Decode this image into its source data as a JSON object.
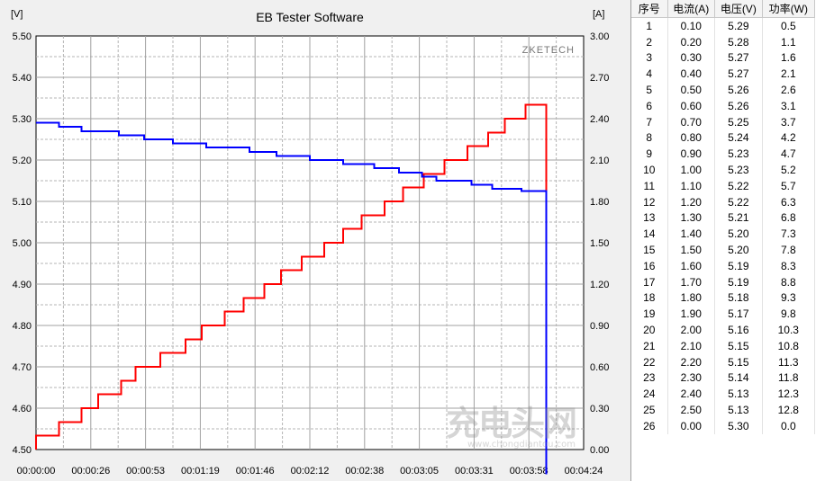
{
  "chart_data": {
    "type": "line",
    "title": "EB Tester Software",
    "watermark_brand": "ZKETECH",
    "left_unit": "[V]",
    "right_unit": "[A]",
    "left_axis": {
      "ylim": [
        4.5,
        5.5
      ],
      "ticks": [
        "5.50",
        "5.40",
        "5.30",
        "5.20",
        "5.10",
        "5.00",
        "4.90",
        "4.80",
        "4.70",
        "4.60",
        "4.50"
      ]
    },
    "right_axis": {
      "ylim": [
        0.0,
        3.0
      ],
      "ticks": [
        "3.00",
        "2.70",
        "2.40",
        "2.10",
        "1.80",
        "1.50",
        "1.20",
        "0.90",
        "0.60",
        "0.30",
        "0.00"
      ]
    },
    "x_ticks": [
      "00:00:00",
      "00:00:26",
      "00:00:53",
      "00:01:19",
      "00:01:46",
      "00:02:12",
      "00:02:38",
      "00:03:05",
      "00:03:31",
      "00:03:58",
      "00:04:24"
    ],
    "x_range_seconds": [
      0,
      264
    ],
    "series": [
      {
        "name": "Current",
        "axis": "right",
        "color": "#ff0000",
        "points": [
          [
            0,
            0.0
          ],
          [
            0,
            0.1
          ],
          [
            11,
            0.1
          ],
          [
            11,
            0.2
          ],
          [
            22,
            0.2
          ],
          [
            22,
            0.3
          ],
          [
            30,
            0.3
          ],
          [
            30,
            0.4
          ],
          [
            41,
            0.4
          ],
          [
            41,
            0.5
          ],
          [
            48,
            0.5
          ],
          [
            48,
            0.6
          ],
          [
            60,
            0.6
          ],
          [
            60,
            0.7
          ],
          [
            72,
            0.7
          ],
          [
            72,
            0.8
          ],
          [
            80,
            0.8
          ],
          [
            80,
            0.9
          ],
          [
            91,
            0.9
          ],
          [
            91,
            1.0
          ],
          [
            100,
            1.0
          ],
          [
            100,
            1.1
          ],
          [
            110,
            1.1
          ],
          [
            110,
            1.2
          ],
          [
            118,
            1.2
          ],
          [
            118,
            1.3
          ],
          [
            128,
            1.3
          ],
          [
            128,
            1.4
          ],
          [
            139,
            1.4
          ],
          [
            139,
            1.5
          ],
          [
            148,
            1.5
          ],
          [
            148,
            1.6
          ],
          [
            157,
            1.6
          ],
          [
            157,
            1.7
          ],
          [
            168,
            1.7
          ],
          [
            168,
            1.8
          ],
          [
            177,
            1.8
          ],
          [
            177,
            1.9
          ],
          [
            187,
            1.9
          ],
          [
            187,
            2.0
          ],
          [
            197,
            2.0
          ],
          [
            197,
            2.1
          ],
          [
            208,
            2.1
          ],
          [
            208,
            2.2
          ],
          [
            218,
            2.2
          ],
          [
            218,
            2.3
          ],
          [
            226,
            2.3
          ],
          [
            226,
            2.4
          ],
          [
            236,
            2.4
          ],
          [
            236,
            2.5
          ],
          [
            246,
            2.5
          ],
          [
            246,
            1.84
          ]
        ]
      },
      {
        "name": "Voltage",
        "axis": "left",
        "color": "#0000ff",
        "points": [
          [
            0,
            5.29
          ],
          [
            11,
            5.29
          ],
          [
            11,
            5.28
          ],
          [
            22,
            5.28
          ],
          [
            22,
            5.27
          ],
          [
            40,
            5.27
          ],
          [
            40,
            5.26
          ],
          [
            52,
            5.26
          ],
          [
            52,
            5.25
          ],
          [
            66,
            5.25
          ],
          [
            66,
            5.24
          ],
          [
            82,
            5.24
          ],
          [
            82,
            5.23
          ],
          [
            103,
            5.23
          ],
          [
            103,
            5.22
          ],
          [
            116,
            5.22
          ],
          [
            116,
            5.21
          ],
          [
            132,
            5.21
          ],
          [
            132,
            5.2
          ],
          [
            148,
            5.2
          ],
          [
            148,
            5.19
          ],
          [
            163,
            5.19
          ],
          [
            163,
            5.18
          ],
          [
            175,
            5.18
          ],
          [
            175,
            5.17
          ],
          [
            186,
            5.17
          ],
          [
            186,
            5.16
          ],
          [
            193,
            5.16
          ],
          [
            193,
            5.15
          ],
          [
            210,
            5.15
          ],
          [
            210,
            5.14
          ],
          [
            220,
            5.14
          ],
          [
            220,
            5.13
          ],
          [
            234,
            5.13
          ],
          [
            234,
            5.125
          ],
          [
            246,
            5.125
          ],
          [
            246,
            5.09
          ],
          [
            246,
            4.44
          ]
        ]
      }
    ]
  },
  "table": {
    "headers": [
      "序号",
      "电流(A)",
      "电压(V)",
      "功率(W)"
    ],
    "rows": [
      [
        "1",
        "0.10",
        "5.29",
        "0.5"
      ],
      [
        "2",
        "0.20",
        "5.28",
        "1.1"
      ],
      [
        "3",
        "0.30",
        "5.27",
        "1.6"
      ],
      [
        "4",
        "0.40",
        "5.27",
        "2.1"
      ],
      [
        "5",
        "0.50",
        "5.26",
        "2.6"
      ],
      [
        "6",
        "0.60",
        "5.26",
        "3.1"
      ],
      [
        "7",
        "0.70",
        "5.25",
        "3.7"
      ],
      [
        "8",
        "0.80",
        "5.24",
        "4.2"
      ],
      [
        "9",
        "0.90",
        "5.23",
        "4.7"
      ],
      [
        "10",
        "1.00",
        "5.23",
        "5.2"
      ],
      [
        "11",
        "1.10",
        "5.22",
        "5.7"
      ],
      [
        "12",
        "1.20",
        "5.22",
        "6.3"
      ],
      [
        "13",
        "1.30",
        "5.21",
        "6.8"
      ],
      [
        "14",
        "1.40",
        "5.20",
        "7.3"
      ],
      [
        "15",
        "1.50",
        "5.20",
        "7.8"
      ],
      [
        "16",
        "1.60",
        "5.19",
        "8.3"
      ],
      [
        "17",
        "1.70",
        "5.19",
        "8.8"
      ],
      [
        "18",
        "1.80",
        "5.18",
        "9.3"
      ],
      [
        "19",
        "1.90",
        "5.17",
        "9.8"
      ],
      [
        "20",
        "2.00",
        "5.16",
        "10.3"
      ],
      [
        "21",
        "2.10",
        "5.15",
        "10.8"
      ],
      [
        "22",
        "2.20",
        "5.15",
        "11.3"
      ],
      [
        "23",
        "2.30",
        "5.14",
        "11.8"
      ],
      [
        "24",
        "2.40",
        "5.13",
        "12.3"
      ],
      [
        "25",
        "2.50",
        "5.13",
        "12.8"
      ],
      [
        "26",
        "0.00",
        "5.30",
        "0.0"
      ]
    ]
  },
  "watermark_site": {
    "main": "充电头网",
    "sub": "www.chongdiantou.com"
  }
}
